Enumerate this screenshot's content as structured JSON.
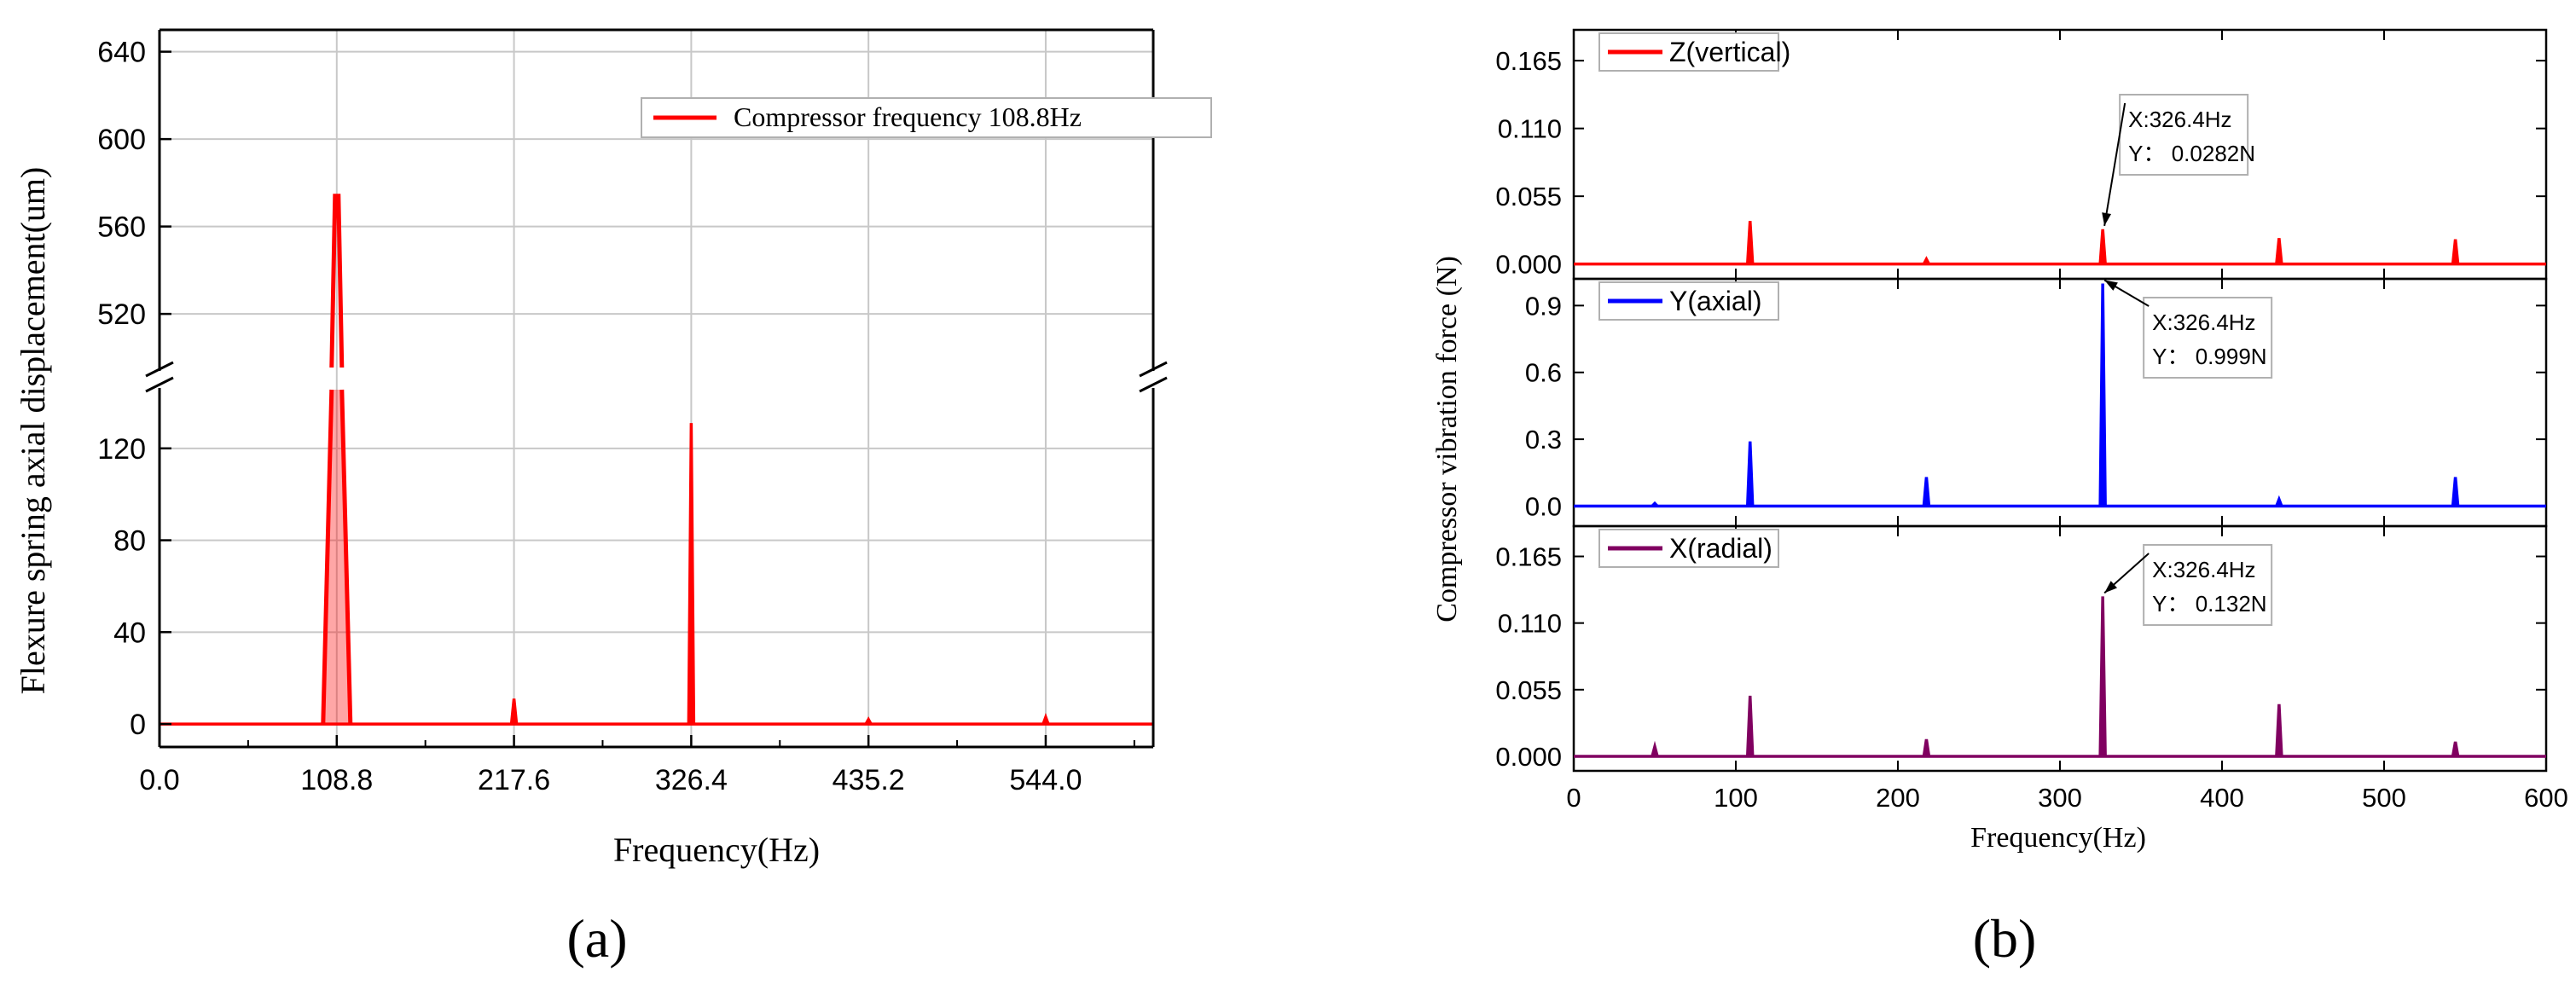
{
  "chart_data": [
    {
      "panel_label": "(a)",
      "type": "line",
      "title": "",
      "xlabel": "Frequency(Hz)",
      "ylabel": "Flexure spring axial displacement(um)",
      "xlim": [
        0,
        610
      ],
      "xticks": [
        "0.0",
        "108.8",
        "217.6",
        "326.4",
        "435.2",
        "544.0"
      ],
      "xtick_values": [
        0,
        108.8,
        217.6,
        326.4,
        435.2,
        544.0
      ],
      "y_axis_broken": true,
      "ylim_lower": [
        -10,
        150
      ],
      "yticks_lower": [
        "0",
        "40",
        "80",
        "120"
      ],
      "ylim_upper": [
        490,
        650
      ],
      "yticks_upper": [
        "520",
        "560",
        "600",
        "640"
      ],
      "grid": true,
      "legend": {
        "position": "top-right",
        "entries": [
          "Compressor frequency 108.8Hz"
        ]
      },
      "series": [
        {
          "name": "Compressor frequency 108.8Hz",
          "color": "#ff0000",
          "baseline": 0,
          "peaks": [
            {
              "x": 108.8,
              "y": 574
            },
            {
              "x": 217.6,
              "y": 11
            },
            {
              "x": 326.4,
              "y": 131
            },
            {
              "x": 435.2,
              "y": 2
            },
            {
              "x": 544.0,
              "y": 3
            }
          ]
        }
      ]
    },
    {
      "panel_label": "(b)",
      "type": "line",
      "title": "",
      "xlabel": "Frequency(Hz)",
      "ylabel": "Compressor vibration force (N)",
      "xlim": [
        0,
        600
      ],
      "xticks": [
        "0",
        "100",
        "200",
        "300",
        "400",
        "500",
        "600"
      ],
      "xtick_values": [
        0,
        100,
        200,
        300,
        400,
        500,
        600
      ],
      "grid": false,
      "subplots": [
        {
          "legend": "Z(vertical)",
          "legend_position": "top-left",
          "color": "#ff0000",
          "ylim": [
            -0.012,
            0.19
          ],
          "yticks": [
            "0.000",
            "0.055",
            "0.110",
            "0.165"
          ],
          "ytick_values": [
            0,
            0.055,
            0.11,
            0.165
          ],
          "peaks": [
            {
              "x": 108.8,
              "y": 0.035
            },
            {
              "x": 217.6,
              "y": 0.004
            },
            {
              "x": 326.4,
              "y": 0.0282
            },
            {
              "x": 435.2,
              "y": 0.021
            },
            {
              "x": 544.0,
              "y": 0.02
            }
          ],
          "annotation": {
            "x_text": "X:326.4Hz",
            "y_text": "Y： 0.0282N"
          }
        },
        {
          "legend": "Y(axial)",
          "legend_position": "top-left",
          "color": "#0000ff",
          "ylim": [
            -0.09,
            1.02
          ],
          "yticks": [
            "0.0",
            "0.3",
            "0.6",
            "0.9"
          ],
          "ytick_values": [
            0,
            0.3,
            0.6,
            0.9
          ],
          "peaks": [
            {
              "x": 50,
              "y": 0.012
            },
            {
              "x": 108.8,
              "y": 0.29
            },
            {
              "x": 217.6,
              "y": 0.13
            },
            {
              "x": 326.4,
              "y": 0.999
            },
            {
              "x": 435.2,
              "y": 0.03
            },
            {
              "x": 544.0,
              "y": 0.13
            }
          ],
          "annotation": {
            "x_text": "X:326.4Hz",
            "y_text": "Y： 0.999N"
          }
        },
        {
          "legend": "X(radial)",
          "legend_position": "top-left",
          "color": "#800060",
          "ylim": [
            -0.012,
            0.19
          ],
          "yticks": [
            "0.000",
            "0.055",
            "0.110",
            "0.165"
          ],
          "ytick_values": [
            0,
            0.055,
            0.11,
            0.165
          ],
          "peaks": [
            {
              "x": 50,
              "y": 0.008
            },
            {
              "x": 108.8,
              "y": 0.05
            },
            {
              "x": 217.6,
              "y": 0.014
            },
            {
              "x": 326.4,
              "y": 0.132
            },
            {
              "x": 435.2,
              "y": 0.043
            },
            {
              "x": 544.0,
              "y": 0.012
            }
          ],
          "annotation": {
            "x_text": "X:326.4Hz",
            "y_text": "Y： 0.132N"
          }
        }
      ]
    }
  ]
}
